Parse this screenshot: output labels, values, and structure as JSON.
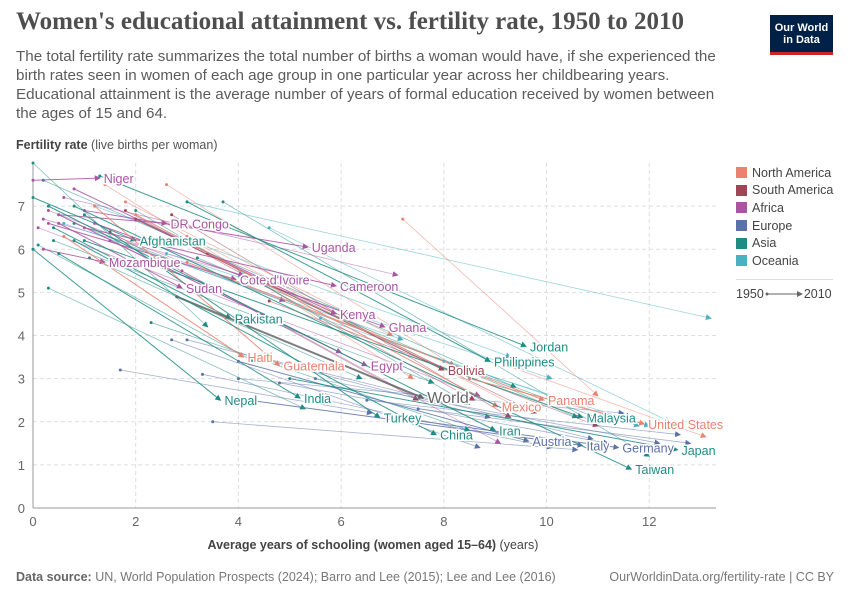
{
  "header": {
    "title": "Women's educational attainment vs. fertility rate, 1950 to 2010",
    "subtitle": "The total fertility rate summarizes the total number of births a woman would have, if she experienced the birth rates seen in women of each age group in one particular year across her childbearing years. Educational attainment is the average number of years of formal education received by women between the ages of 15 and 64.",
    "logo": "Our World in Data"
  },
  "footer": {
    "source_label": "Data source:",
    "source": "UN, World Population Prospects (2024); Barro and Lee (2015); Lee and Lee (2016)",
    "credit": "OurWorldinData.org/fertility-rate | CC BY"
  },
  "legend": {
    "items": [
      {
        "label": "North America",
        "color": "#e9836f"
      },
      {
        "label": "South America",
        "color": "#9e4556"
      },
      {
        "label": "Africa",
        "color": "#a955a4"
      },
      {
        "label": "Europe",
        "color": "#5b72a8"
      },
      {
        "label": "Asia",
        "color": "#1f8c83"
      },
      {
        "label": "Oceania",
        "color": "#49b1c1"
      }
    ],
    "time_start": "1950",
    "time_end": "2010"
  },
  "chart_data": {
    "type": "scatter",
    "subtype": "connected arrows (1950 to 2010)",
    "ylabel_bold": "Fertility rate",
    "ylabel_unit": "(live births per woman)",
    "xlabel_bold": "Average years of schooling (women aged 15–64)",
    "xlabel_unit": "(years)",
    "xlim": [
      0,
      13.3
    ],
    "ylim": [
      0,
      8
    ],
    "xticks": [
      "0",
      "2",
      "4",
      "6",
      "8",
      "10",
      "12"
    ],
    "yticks": [
      "0",
      "1",
      "2",
      "3",
      "4",
      "5",
      "6",
      "7"
    ],
    "grid": true,
    "legend_position": "right",
    "world_color": "#666666",
    "series": [
      {
        "name": "Niger",
        "region": "Africa",
        "start": [
          0,
          7.6
        ],
        "end": [
          1.3,
          7.65
        ]
      },
      {
        "name": "DR Congo",
        "region": "Africa",
        "start": [
          0.5,
          6.8
        ],
        "end": [
          2.6,
          6.6
        ]
      },
      {
        "name": "Afghanistan",
        "region": "Asia",
        "start": [
          0,
          7.2
        ],
        "end": [
          2.0,
          6.2
        ]
      },
      {
        "name": "Uganda",
        "region": "Africa",
        "start": [
          1.0,
          6.9
        ],
        "end": [
          5.35,
          6.05
        ]
      },
      {
        "name": "Mozambique",
        "region": "Africa",
        "start": [
          0.2,
          6.0
        ],
        "end": [
          1.4,
          5.7
        ]
      },
      {
        "name": "Sudan",
        "region": "Africa",
        "start": [
          0.5,
          6.6
        ],
        "end": [
          2.9,
          5.1
        ]
      },
      {
        "name": "Cote d'Ivoire",
        "region": "Africa",
        "start": [
          0.3,
          6.6
        ],
        "end": [
          3.95,
          5.3
        ]
      },
      {
        "name": "Cameroon",
        "region": "Africa",
        "start": [
          1.0,
          6.5
        ],
        "end": [
          5.9,
          5.15
        ]
      },
      {
        "name": "Kenya",
        "region": "Africa",
        "start": [
          0.8,
          7.4
        ],
        "end": [
          5.9,
          4.5
        ]
      },
      {
        "name": "Ghana",
        "region": "Africa",
        "start": [
          1.2,
          6.6
        ],
        "end": [
          6.85,
          4.2
        ]
      },
      {
        "name": "Pakistan",
        "region": "Asia",
        "start": [
          0.4,
          6.5
        ],
        "end": [
          3.85,
          4.4
        ]
      },
      {
        "name": "Haiti",
        "region": "North America",
        "start": [
          0.6,
          6.3
        ],
        "end": [
          4.1,
          3.5
        ]
      },
      {
        "name": "Guatemala",
        "region": "North America",
        "start": [
          1.2,
          7.0
        ],
        "end": [
          4.8,
          3.3
        ]
      },
      {
        "name": "Egypt",
        "region": "Africa",
        "start": [
          0.5,
          6.8
        ],
        "end": [
          6.5,
          3.3
        ]
      },
      {
        "name": "Bolivia",
        "region": "South America",
        "start": [
          2.0,
          6.7
        ],
        "end": [
          8.0,
          3.2
        ]
      },
      {
        "name": "Philippines",
        "region": "Asia",
        "start": [
          3.0,
          7.1
        ],
        "end": [
          8.9,
          3.4
        ]
      },
      {
        "name": "Jordan",
        "region": "Asia",
        "start": [
          1.3,
          7.7
        ],
        "end": [
          9.6,
          3.75
        ]
      },
      {
        "name": "Nepal",
        "region": "Asia",
        "start": [
          0,
          6.0
        ],
        "end": [
          3.65,
          2.5
        ]
      },
      {
        "name": "India",
        "region": "Asia",
        "start": [
          0.5,
          5.9
        ],
        "end": [
          5.2,
          2.55
        ]
      },
      {
        "name": "World",
        "region": "World",
        "start": [
          2.8,
          4.9
        ],
        "end": [
          7.6,
          2.55
        ]
      },
      {
        "name": "Turkey",
        "region": "Asia",
        "start": [
          1.0,
          6.8
        ],
        "end": [
          6.75,
          2.1
        ]
      },
      {
        "name": "China",
        "region": "Asia",
        "start": [
          0.8,
          6.2
        ],
        "end": [
          7.85,
          1.7
        ]
      },
      {
        "name": "Iran",
        "region": "Asia",
        "start": [
          0.3,
          7.0
        ],
        "end": [
          9.0,
          1.8
        ]
      },
      {
        "name": "Mexico",
        "region": "North America",
        "start": [
          2.0,
          6.8
        ],
        "end": [
          9.05,
          2.35
        ]
      },
      {
        "name": "Panama",
        "region": "North America",
        "start": [
          3.0,
          5.7
        ],
        "end": [
          9.95,
          2.5
        ]
      },
      {
        "name": "Malaysia",
        "region": "Asia",
        "start": [
          1.0,
          6.2
        ],
        "end": [
          10.7,
          2.1
        ]
      },
      {
        "name": "United States",
        "region": "North America",
        "start": [
          8.5,
          3.0
        ],
        "end": [
          11.9,
          1.95
        ]
      },
      {
        "name": "Austria",
        "region": "Europe",
        "start": [
          4.0,
          3.4
        ],
        "end": [
          9.65,
          1.55
        ]
      },
      {
        "name": "Italy",
        "region": "Europe",
        "start": [
          4.2,
          2.5
        ],
        "end": [
          10.7,
          1.45
        ]
      },
      {
        "name": "Germany",
        "region": "Europe",
        "start": [
          7.0,
          2.1
        ],
        "end": [
          11.4,
          1.4
        ]
      },
      {
        "name": "Japan",
        "region": "Asia",
        "start": [
          5.0,
          3.0
        ],
        "end": [
          12.55,
          1.35
        ]
      },
      {
        "name": "Taiwan",
        "region": "Asia",
        "start": [
          0.8,
          7.0
        ],
        "end": [
          11.65,
          0.9
        ]
      },
      {
        "name": "",
        "region": "North America",
        "start": [
          7.2,
          6.7
        ],
        "end": [
          11.0,
          2.6
        ]
      },
      {
        "name": "",
        "region": "North America",
        "start": [
          1.4,
          7.5
        ],
        "end": [
          7.4,
          3.0
        ]
      },
      {
        "name": "",
        "region": "North America",
        "start": [
          2.6,
          7.5
        ],
        "end": [
          8.2,
          3.3
        ]
      },
      {
        "name": "",
        "region": "North America",
        "start": [
          3.0,
          6.3
        ],
        "end": [
          9.5,
          2.3
        ]
      },
      {
        "name": "",
        "region": "North America",
        "start": [
          1.8,
          7.1
        ],
        "end": [
          7.0,
          4.0
        ]
      },
      {
        "name": "",
        "region": "North America",
        "start": [
          9.0,
          3.4
        ],
        "end": [
          13.1,
          1.65
        ]
      },
      {
        "name": "",
        "region": "South America",
        "start": [
          1.5,
          6.4
        ],
        "end": [
          7.5,
          2.5
        ]
      },
      {
        "name": "",
        "region": "South America",
        "start": [
          2.7,
          6.8
        ],
        "end": [
          9.3,
          2.1
        ]
      },
      {
        "name": "",
        "region": "South America",
        "start": [
          1.8,
          6.9
        ],
        "end": [
          8.6,
          2.5
        ]
      },
      {
        "name": "",
        "region": "South America",
        "start": [
          3.4,
          5.9
        ],
        "end": [
          9.8,
          2.2
        ]
      },
      {
        "name": "",
        "region": "South America",
        "start": [
          4.6,
          4.8
        ],
        "end": [
          11.0,
          1.9
        ]
      },
      {
        "name": "",
        "region": "Africa",
        "start": [
          0.2,
          6.7
        ],
        "end": [
          4.1,
          5.4
        ]
      },
      {
        "name": "",
        "region": "Africa",
        "start": [
          0.6,
          7.2
        ],
        "end": [
          7.1,
          5.4
        ]
      },
      {
        "name": "",
        "region": "Africa",
        "start": [
          0.3,
          6.9
        ],
        "end": [
          4.9,
          4.8
        ]
      },
      {
        "name": "",
        "region": "Africa",
        "start": [
          0.1,
          6.5
        ],
        "end": [
          8.7,
          2.6
        ]
      },
      {
        "name": "",
        "region": "Africa",
        "start": [
          1.5,
          6.2
        ],
        "end": [
          6.0,
          3.6
        ]
      },
      {
        "name": "",
        "region": "Africa",
        "start": [
          2.9,
          5.5
        ],
        "end": [
          9.1,
          1.5
        ]
      },
      {
        "name": "",
        "region": "Europe",
        "start": [
          4.8,
          2.9
        ],
        "end": [
          11.2,
          1.5
        ]
      },
      {
        "name": "",
        "region": "Europe",
        "start": [
          5.5,
          3.0
        ],
        "end": [
          12.2,
          1.5
        ]
      },
      {
        "name": "",
        "region": "Europe",
        "start": [
          3.3,
          3.1
        ],
        "end": [
          10.1,
          1.4
        ]
      },
      {
        "name": "",
        "region": "Europe",
        "start": [
          6.5,
          2.5
        ],
        "end": [
          12.6,
          1.7
        ]
      },
      {
        "name": "",
        "region": "Europe",
        "start": [
          3.0,
          3.9
        ],
        "end": [
          8.9,
          2.1
        ]
      },
      {
        "name": "",
        "region": "Europe",
        "start": [
          1.7,
          3.2
        ],
        "end": [
          6.6,
          2.2
        ]
      },
      {
        "name": "",
        "region": "Europe",
        "start": [
          4.0,
          3.0
        ],
        "end": [
          11.5,
          2.2
        ]
      },
      {
        "name": "",
        "region": "Europe",
        "start": [
          3.5,
          2.0
        ],
        "end": [
          10.6,
          1.35
        ]
      },
      {
        "name": "",
        "region": "Europe",
        "start": [
          7.5,
          2.3
        ],
        "end": [
          12.8,
          1.5
        ]
      },
      {
        "name": "",
        "region": "Europe",
        "start": [
          4.4,
          3.5
        ],
        "end": [
          10.9,
          1.6
        ]
      },
      {
        "name": "",
        "region": "Europe",
        "start": [
          2.7,
          3.9
        ],
        "end": [
          8.7,
          1.4
        ]
      },
      {
        "name": "",
        "region": "Asia",
        "start": [
          0,
          8.0
        ],
        "end": [
          3.4,
          4.2
        ]
      },
      {
        "name": "",
        "region": "Asia",
        "start": [
          0.3,
          5.1
        ],
        "end": [
          5.3,
          2.3
        ]
      },
      {
        "name": "",
        "region": "Asia",
        "start": [
          0.2,
          7.6
        ],
        "end": [
          9.4,
          2.8
        ]
      },
      {
        "name": "",
        "region": "Asia",
        "start": [
          2.0,
          6.9
        ],
        "end": [
          8.5,
          2.4
        ]
      },
      {
        "name": "",
        "region": "Asia",
        "start": [
          0.4,
          6.2
        ],
        "end": [
          7.8,
          2.9
        ]
      },
      {
        "name": "",
        "region": "Asia",
        "start": [
          3.2,
          5.8
        ],
        "end": [
          10.6,
          2.1
        ]
      },
      {
        "name": "",
        "region": "Asia",
        "start": [
          1.1,
          5.8
        ],
        "end": [
          6.4,
          3.0
        ]
      },
      {
        "name": "",
        "region": "Asia",
        "start": [
          3.7,
          7.1
        ],
        "end": [
          12.0,
          1.2
        ]
      },
      {
        "name": "",
        "region": "Asia",
        "start": [
          0.8,
          6.6
        ],
        "end": [
          11.2,
          2.0
        ]
      },
      {
        "name": "",
        "region": "Asia",
        "start": [
          2.3,
          4.3
        ],
        "end": [
          8.5,
          1.8
        ]
      },
      {
        "name": "",
        "region": "Asia",
        "start": [
          0.1,
          6.1
        ],
        "end": [
          4.3,
          3.4
        ]
      },
      {
        "name": "",
        "region": "Oceania",
        "start": [
          1.2,
          7.0
        ],
        "end": [
          9.3,
          3.5
        ]
      },
      {
        "name": "",
        "region": "Oceania",
        "start": [
          4.6,
          6.5
        ],
        "end": [
          12.4,
          2.0
        ]
      },
      {
        "name": "",
        "region": "Oceania",
        "start": [
          8.0,
          3.4
        ],
        "end": [
          12.0,
          1.9
        ]
      },
      {
        "name": "",
        "region": "Oceania",
        "start": [
          2.6,
          5.9
        ],
        "end": [
          10.1,
          3.0
        ]
      },
      {
        "name": "",
        "region": "Oceania",
        "start": [
          0.6,
          6.6
        ],
        "end": [
          7.2,
          3.9
        ]
      },
      {
        "name": "",
        "region": "Oceania",
        "start": [
          3.0,
          7.1
        ],
        "end": [
          13.2,
          4.4
        ]
      },
      {
        "name": "",
        "region": "Oceania",
        "start": [
          5.6,
          4.4
        ],
        "end": [
          11.8,
          1.9
        ]
      }
    ]
  }
}
